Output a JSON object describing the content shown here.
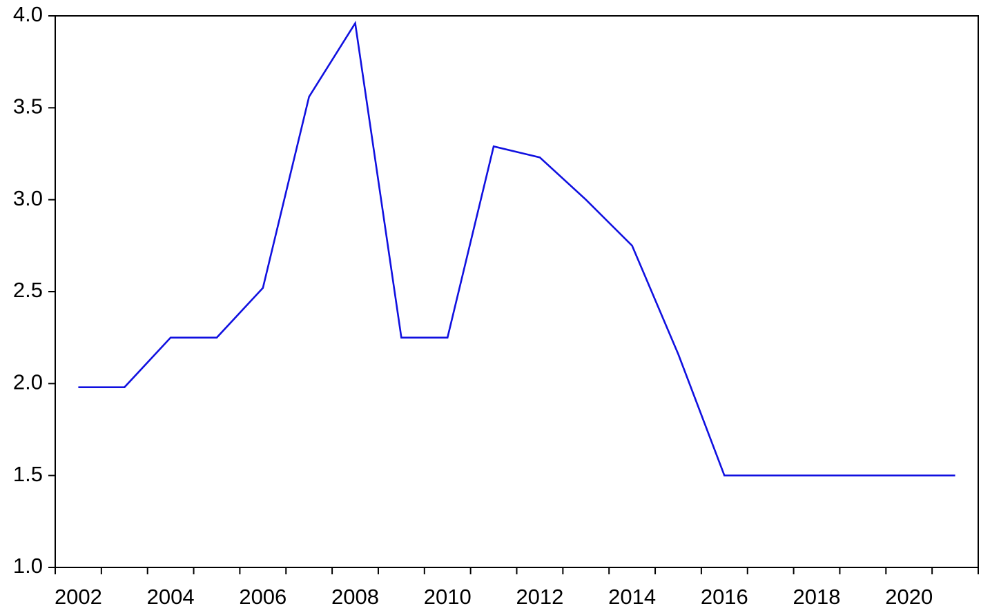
{
  "chart_data": {
    "type": "line",
    "categories": [
      "2002",
      null,
      "2004",
      null,
      "2006",
      null,
      "2008",
      null,
      "2010",
      null,
      "2012",
      null,
      "2014",
      null,
      "2016",
      null,
      "2018",
      null,
      "2020",
      null
    ],
    "series": [
      {
        "color": "#1010e0",
        "values": [
          1.98,
          1.98,
          2.25,
          2.25,
          2.52,
          3.56,
          3.96,
          2.25,
          2.25,
          3.29,
          3.23,
          3.0,
          2.75,
          2.16,
          1.5,
          1.5,
          1.5,
          1.5,
          1.5,
          1.5
        ]
      }
    ],
    "ylim": [
      1.0,
      4.0
    ],
    "yticks": [
      {
        "value": 1.0,
        "label": "1.0"
      },
      {
        "value": 1.5,
        "label": "1.5"
      },
      {
        "value": 2.0,
        "label": "2.0"
      },
      {
        "value": 2.5,
        "label": "2.5"
      },
      {
        "value": 3.0,
        "label": "3.0"
      },
      {
        "value": 3.5,
        "label": "3.5"
      },
      {
        "value": 4.0,
        "label": "4.0"
      }
    ],
    "grid": false
  }
}
